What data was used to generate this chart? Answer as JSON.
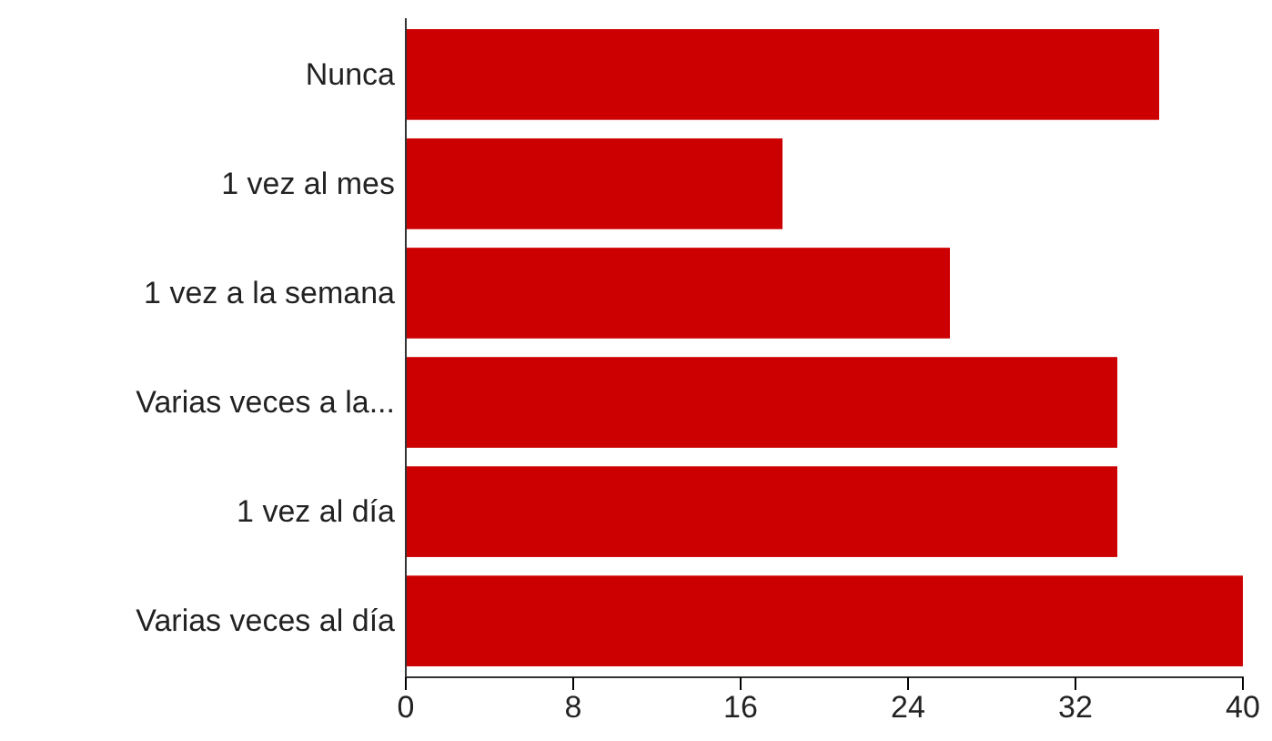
{
  "chart_data": {
    "type": "bar",
    "orientation": "horizontal",
    "categories": [
      "Nunca",
      "1 vez al mes",
      "1 vez a la semana",
      "Varias veces a la...",
      "1 vez al día",
      "Varias veces al día"
    ],
    "values": [
      36,
      18,
      26,
      34,
      34,
      40
    ],
    "color": "#cc0000",
    "xlim": [
      0,
      40
    ],
    "xticks": [
      0,
      8,
      16,
      24,
      32,
      40
    ],
    "grid": false
  }
}
